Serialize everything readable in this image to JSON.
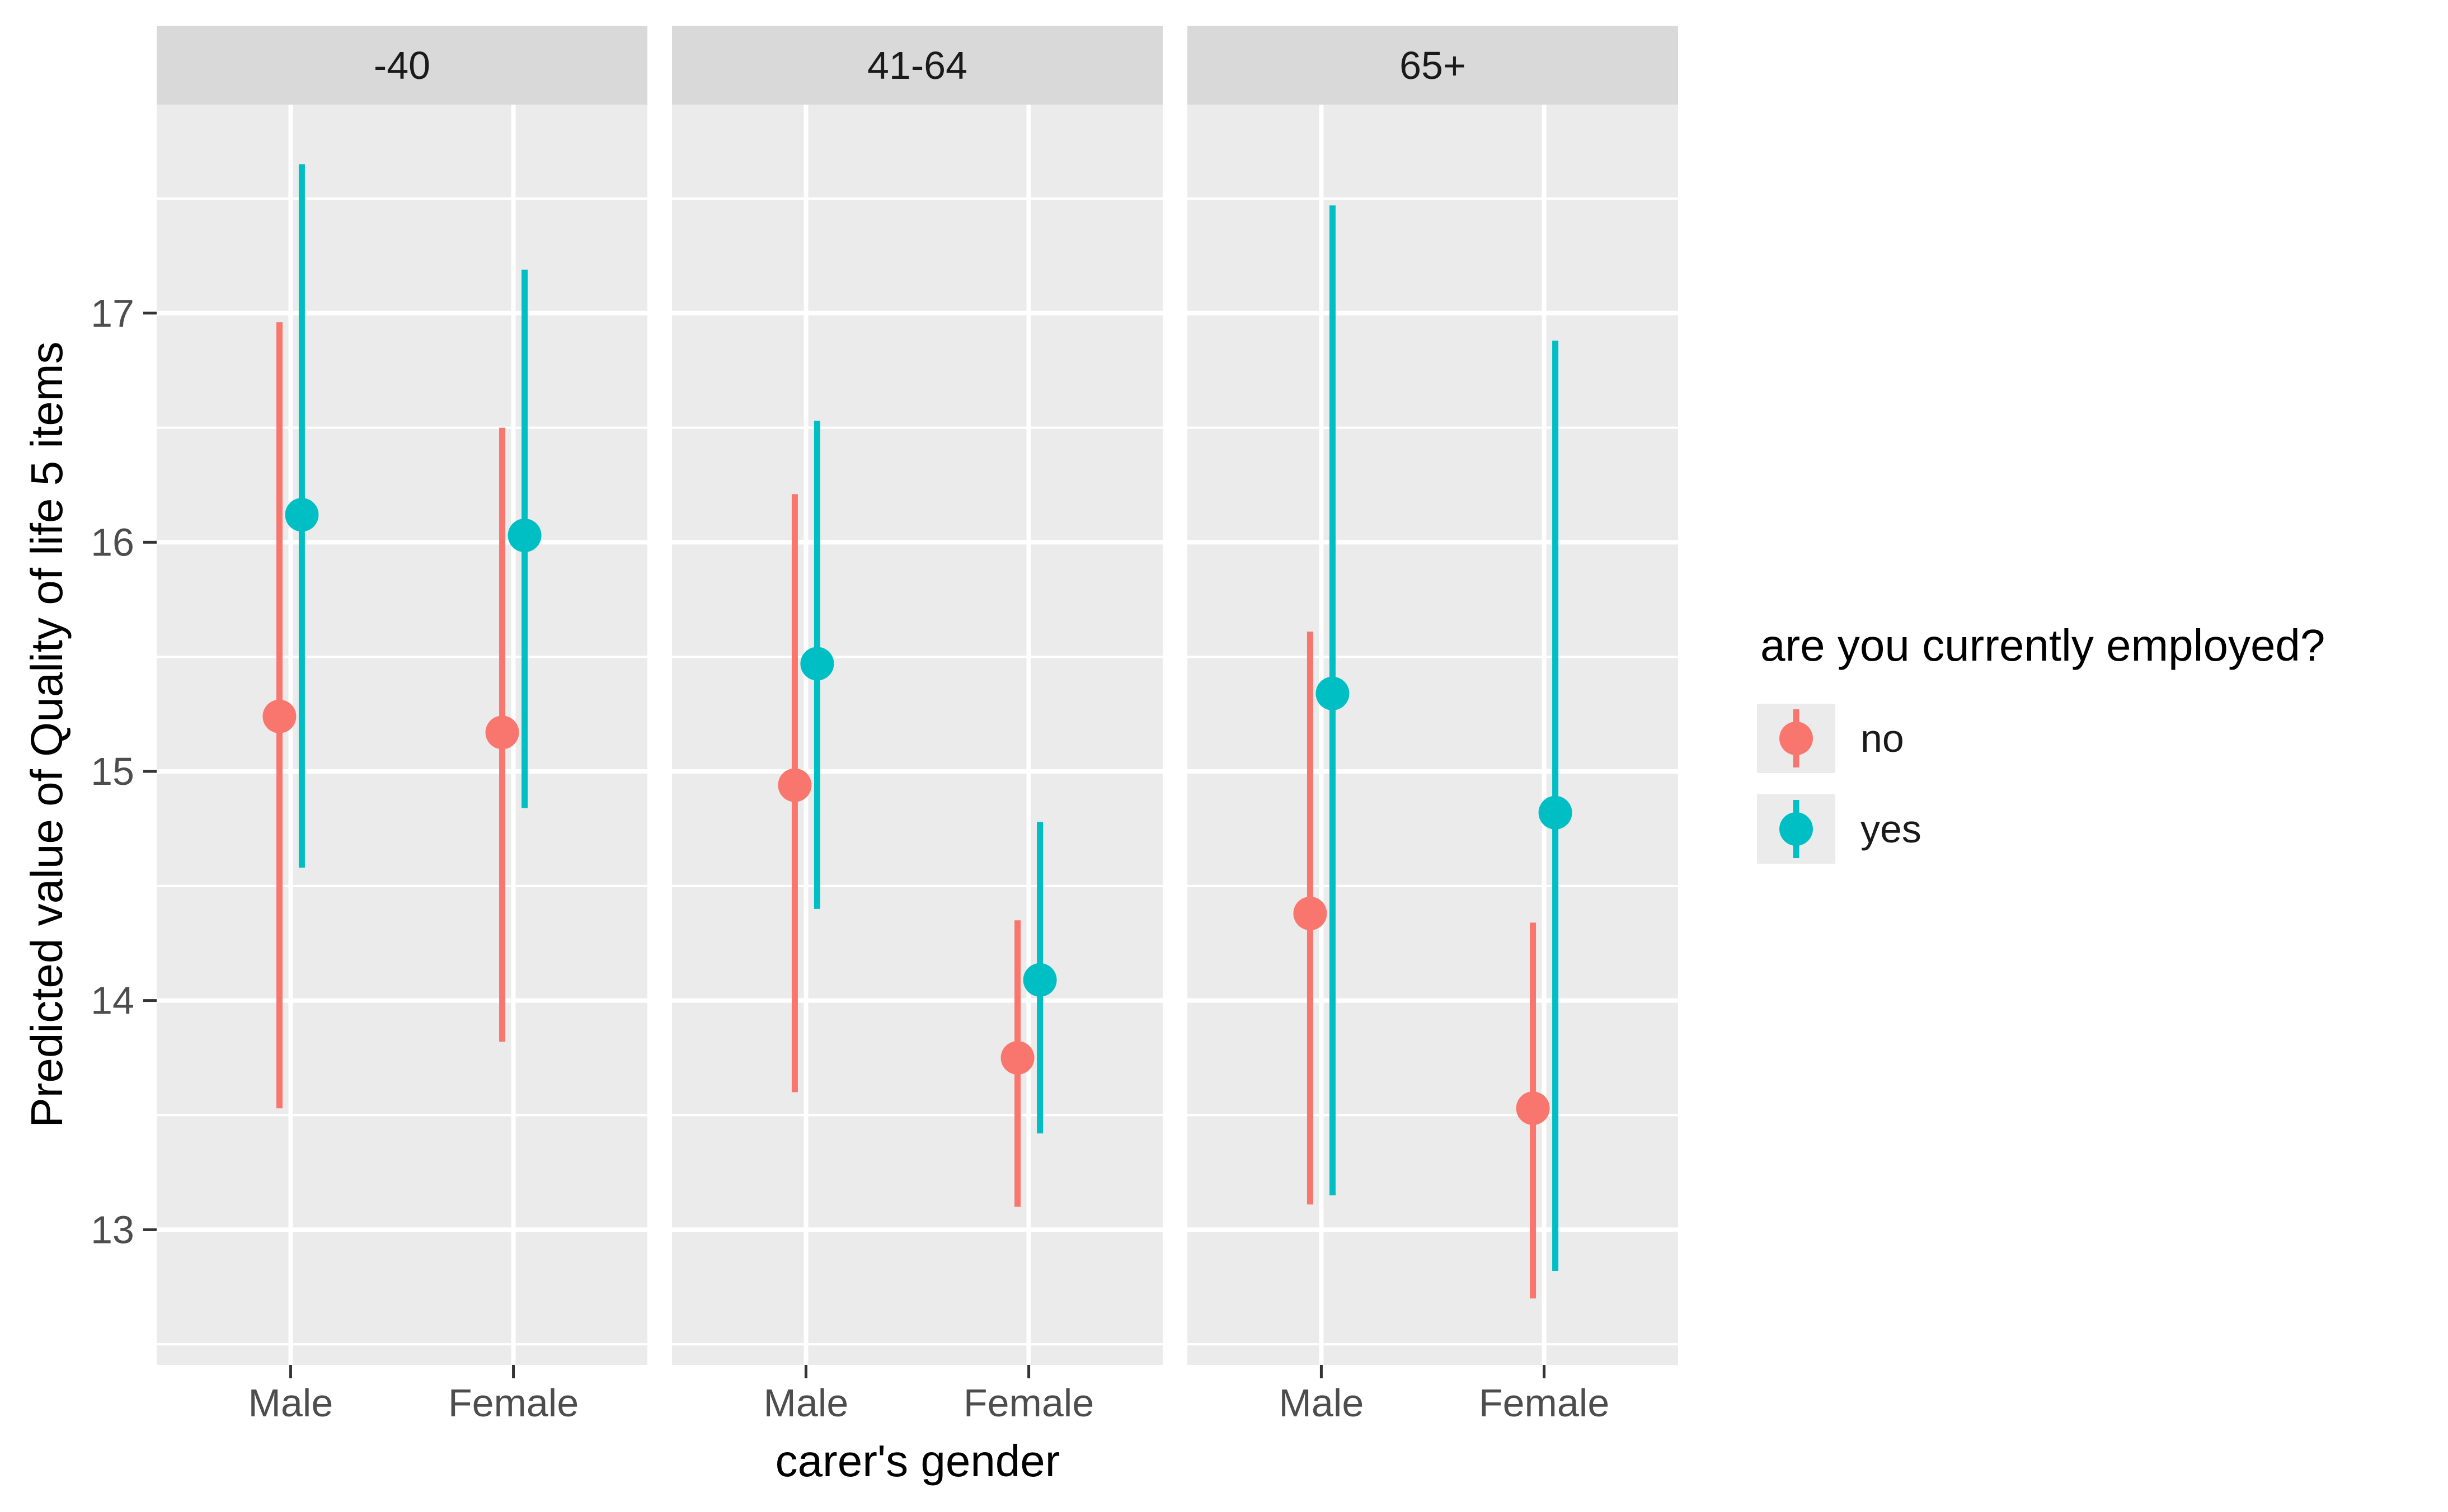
{
  "chart_data": {
    "type": "pointrange",
    "title": "",
    "xlabel": "carer's gender",
    "ylabel": "Predicted value of Quality of life 5 items",
    "facets": [
      "-40",
      "41-64",
      "65+"
    ],
    "categories": [
      "Male",
      "Female"
    ],
    "legend": {
      "title": "are you currently employed?",
      "position": "right",
      "entries": [
        {
          "label": "no",
          "color": "#F8766D"
        },
        {
          "label": "yes",
          "color": "#00BFC4"
        }
      ]
    },
    "y_axis": {
      "tick_labels": [
        "17",
        "16",
        "15",
        "14",
        "13"
      ],
      "tick_values": [
        17,
        16,
        15,
        14,
        13
      ],
      "range": [
        12.41,
        17.91
      ],
      "minor_grid_step": 0.5,
      "grid": "on"
    },
    "points": [
      {
        "facet": "-40",
        "x": "Male",
        "group": "no",
        "estimate": 15.24,
        "low": 13.53,
        "high": 16.96
      },
      {
        "facet": "-40",
        "x": "Male",
        "group": "yes",
        "estimate": 16.12,
        "low": 14.58,
        "high": 17.65
      },
      {
        "facet": "-40",
        "x": "Female",
        "group": "no",
        "estimate": 15.17,
        "low": 13.82,
        "high": 16.5
      },
      {
        "facet": "-40",
        "x": "Female",
        "group": "yes",
        "estimate": 16.03,
        "low": 14.84,
        "high": 17.19
      },
      {
        "facet": "41-64",
        "x": "Male",
        "group": "no",
        "estimate": 14.94,
        "low": 13.6,
        "high": 16.21
      },
      {
        "facet": "41-64",
        "x": "Male",
        "group": "yes",
        "estimate": 15.47,
        "low": 14.4,
        "high": 16.53
      },
      {
        "facet": "41-64",
        "x": "Female",
        "group": "no",
        "estimate": 13.75,
        "low": 13.1,
        "high": 14.35
      },
      {
        "facet": "41-64",
        "x": "Female",
        "group": "yes",
        "estimate": 14.09,
        "low": 13.42,
        "high": 14.78
      },
      {
        "facet": "65+",
        "x": "Male",
        "group": "no",
        "estimate": 14.38,
        "low": 13.11,
        "high": 15.61
      },
      {
        "facet": "65+",
        "x": "Male",
        "group": "yes",
        "estimate": 15.34,
        "low": 13.15,
        "high": 17.47
      },
      {
        "facet": "65+",
        "x": "Female",
        "group": "no",
        "estimate": 13.53,
        "low": 12.7,
        "high": 14.34
      },
      {
        "facet": "65+",
        "x": "Female",
        "group": "yes",
        "estimate": 14.82,
        "low": 12.82,
        "high": 16.88
      }
    ]
  },
  "style": {
    "panel_bg": "#EBEBEB",
    "strip_bg": "#D9D9D9",
    "grid_color": "#FFFFFF",
    "tick_label_color": "#4D4D4D",
    "tick_mark_color": "#333333",
    "title_color": "#000000",
    "background": "#FFFFFF"
  }
}
